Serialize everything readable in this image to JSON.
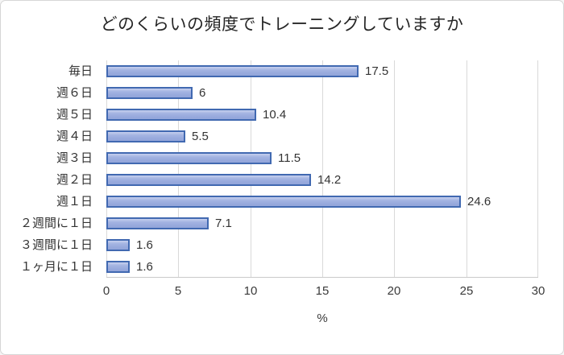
{
  "chart_data": {
    "type": "bar",
    "orientation": "horizontal",
    "title": "どのくらいの頻度でトレーニングしていますか",
    "categories": [
      "毎日",
      "週６日",
      "週５日",
      "週４日",
      "週３日",
      "週２日",
      "週１日",
      "２週間に１日",
      "３週間に１日",
      "１ヶ月に１日"
    ],
    "values": [
      17.5,
      6,
      10.4,
      5.5,
      11.5,
      14.2,
      24.6,
      7.1,
      1.6,
      1.6
    ],
    "value_labels": [
      "17.5",
      "6",
      "10.4",
      "5.5",
      "11.5",
      "14.2",
      "24.6",
      "7.1",
      "1.6",
      "1.6"
    ],
    "xlabel": "%",
    "xlim": [
      0,
      30
    ],
    "xticks": [
      0,
      5,
      10,
      15,
      20,
      25,
      30
    ],
    "grid": "vertical",
    "legend": "none",
    "colors": {
      "bar_fill": "#98aadd",
      "bar_border": "#4169b1",
      "gridline": "#d9d9d9",
      "axis_line": "#c9c9c9",
      "text": "#333333",
      "title_text": "#262626",
      "background": "#ffffff",
      "chart_border": "#d6d6d6"
    }
  }
}
